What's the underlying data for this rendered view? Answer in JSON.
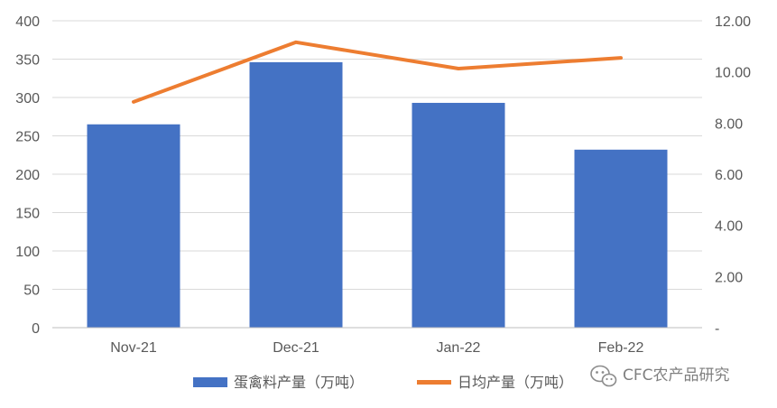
{
  "chart_data": {
    "type": "bar",
    "categories": [
      "Nov-21",
      "Dec-21",
      "Jan-22",
      "Feb-22"
    ],
    "series": [
      {
        "name": "蛋禽料产量（万吨）",
        "type": "bar",
        "axis": "left",
        "color": "#4472C4",
        "values": [
          265,
          346,
          293,
          232
        ]
      },
      {
        "name": "日均产量（万吨）",
        "type": "line",
        "axis": "right",
        "color": "#ED7D31",
        "values": [
          8.83,
          11.16,
          10.13,
          10.55
        ]
      }
    ],
    "left_axis": {
      "min": 0,
      "max": 400,
      "step": 50,
      "tick_labels": [
        "0",
        "50",
        "100",
        "150",
        "200",
        "250",
        "300",
        "350",
        "400"
      ]
    },
    "right_axis": {
      "min": 0,
      "max": 12,
      "step": 2,
      "tick_labels": [
        "-",
        "2.00",
        "4.00",
        "6.00",
        "8.00",
        "10.00",
        "12.00"
      ]
    },
    "grid": true,
    "legend_position": "bottom",
    "title": "",
    "xlabel": "",
    "ylabel": ""
  },
  "watermark": {
    "text": "CFC农产品研究",
    "icon": "wechat-icon"
  }
}
